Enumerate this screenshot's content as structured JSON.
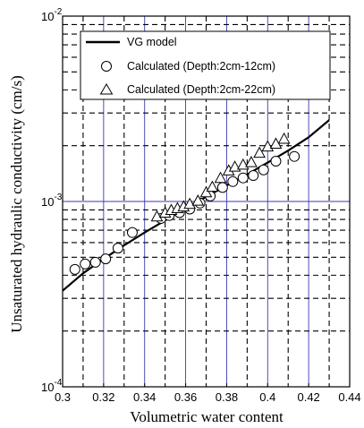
{
  "chart_data": {
    "type": "scatter",
    "title": "",
    "xlabel": "Volumetric water content",
    "ylabel": "Unsaturated hydraulic conductivity (cm/s)",
    "xlim": [
      0.3,
      0.44
    ],
    "ylim": [
      0.0001,
      0.01
    ],
    "yscale": "log",
    "grid": true,
    "legend_position": "top-left",
    "xticks": [
      "0.3",
      "0.32",
      "0.34",
      "0.36",
      "0.38",
      "0.4",
      "0.42",
      "0.44"
    ],
    "yticks": [
      {
        "base": "10",
        "exp": "-4",
        "value": 0.0001
      },
      {
        "base": "10",
        "exp": "-3",
        "value": 0.001
      },
      {
        "base": "10",
        "exp": "-2",
        "value": 0.01
      }
    ],
    "colors": {
      "grid_major": "#3a3ab0",
      "grid_minor": "#000000",
      "series": "#000000"
    },
    "series": [
      {
        "name": "VG model",
        "kind": "line",
        "x": [
          0.3,
          0.31,
          0.32,
          0.33,
          0.34,
          0.35,
          0.36,
          0.37,
          0.38,
          0.39,
          0.4,
          0.41,
          0.42,
          0.43
        ],
        "y": [
          0.00033,
          0.00041,
          0.00049,
          0.00058,
          0.00068,
          0.00079,
          0.00092,
          0.00106,
          0.00122,
          0.0014,
          0.00162,
          0.00188,
          0.00222,
          0.00275
        ]
      },
      {
        "name": "Calculated (Depth:2cm-12cm)",
        "marker": "circle",
        "x": [
          0.306,
          0.311,
          0.316,
          0.321,
          0.327,
          0.334,
          0.348,
          0.352,
          0.357,
          0.362,
          0.367,
          0.372,
          0.378,
          0.383,
          0.388,
          0.393,
          0.398,
          0.404,
          0.413
        ],
        "y": [
          0.00043,
          0.00046,
          0.00047,
          0.00049,
          0.00056,
          0.00068,
          0.00081,
          0.00084,
          0.00087,
          0.00091,
          0.00098,
          0.00107,
          0.00119,
          0.00128,
          0.00134,
          0.00138,
          0.00148,
          0.00165,
          0.00175
        ]
      },
      {
        "name": "Calculated (Depth:2cm-22cm)",
        "marker": "triangle",
        "x": [
          0.346,
          0.35,
          0.353,
          0.356,
          0.359,
          0.362,
          0.366,
          0.37,
          0.373,
          0.377,
          0.381,
          0.384,
          0.388,
          0.392,
          0.396,
          0.4,
          0.404,
          0.408
        ],
        "y": [
          0.00083,
          0.00087,
          0.0009,
          0.00092,
          0.00094,
          0.00097,
          0.00101,
          0.00112,
          0.0012,
          0.00134,
          0.00147,
          0.00154,
          0.00158,
          0.00163,
          0.00183,
          0.00198,
          0.00205,
          0.00218
        ]
      }
    ]
  }
}
